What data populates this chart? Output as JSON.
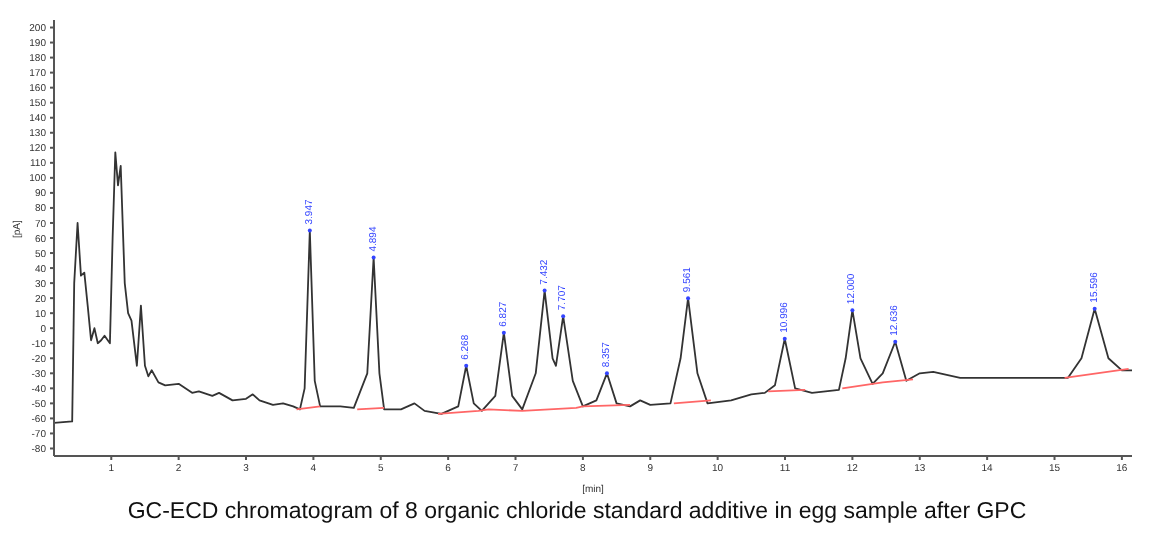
{
  "chart_data": {
    "type": "line",
    "title": "GC-ECD chromatogram of 8 organic chloride standard additive in egg sample after GPC",
    "xlabel": "[min]",
    "ylabel": "[pA]",
    "xlim": [
      0.15,
      16.15
    ],
    "ylim": [
      -85,
      205
    ],
    "xticks": [
      1,
      2,
      3,
      4,
      5,
      6,
      7,
      8,
      9,
      10,
      11,
      12,
      13,
      14,
      15,
      16
    ],
    "yticks": [
      -80,
      -70,
      -60,
      -50,
      -40,
      -30,
      -20,
      -10,
      0,
      10,
      20,
      30,
      40,
      50,
      60,
      70,
      80,
      90,
      100,
      110,
      120,
      130,
      140,
      150,
      160,
      170,
      180,
      190,
      200
    ],
    "series": [
      {
        "color": "#333333",
        "x": [
          0.15,
          0.42,
          0.45,
          0.5,
          0.55,
          0.6,
          0.65,
          0.7,
          0.75,
          0.8,
          0.85,
          0.9,
          0.98,
          1.02,
          1.06,
          1.1,
          1.14,
          1.2,
          1.25,
          1.3,
          1.38,
          1.44,
          1.5,
          1.55,
          1.6,
          1.7,
          1.8,
          2.0,
          2.1,
          2.2,
          2.3,
          2.5,
          2.6,
          2.8,
          3.0,
          3.1,
          3.2,
          3.4,
          3.55,
          3.7,
          3.8,
          3.87,
          3.947,
          4.02,
          4.1,
          4.4,
          4.6,
          4.8,
          4.894,
          4.98,
          5.05,
          5.3,
          5.5,
          5.65,
          5.9,
          6.15,
          6.268,
          6.38,
          6.5,
          6.7,
          6.827,
          6.95,
          7.1,
          7.3,
          7.432,
          7.55,
          7.6,
          7.707,
          7.85,
          8.0,
          8.2,
          8.357,
          8.5,
          8.7,
          8.85,
          9.0,
          9.3,
          9.45,
          9.561,
          9.7,
          9.85,
          10.2,
          10.5,
          10.7,
          10.85,
          10.996,
          11.15,
          11.4,
          11.8,
          11.9,
          12.0,
          12.12,
          12.3,
          12.45,
          12.636,
          12.8,
          13.0,
          13.2,
          13.6,
          14.0,
          14.5,
          15.2,
          15.4,
          15.596,
          15.8,
          16.0,
          16.15
        ],
        "values": [
          -63,
          -62,
          30,
          70,
          35,
          37,
          15,
          -8,
          0,
          -10,
          -8,
          -5,
          -10,
          60,
          117,
          95,
          108,
          30,
          10,
          5,
          -25,
          15,
          -25,
          -32,
          -28,
          -36,
          -38,
          -37,
          -40,
          -43,
          -42,
          -45,
          -43,
          -48,
          -47,
          -44,
          -48,
          -51,
          -50,
          -52,
          -54,
          -40,
          65,
          -35,
          -52,
          -52,
          -53,
          -30,
          47,
          -30,
          -54,
          -54,
          -50,
          -55,
          -57,
          -52,
          -25,
          -50,
          -55,
          -45,
          -3,
          -45,
          -54,
          -30,
          25,
          -20,
          -25,
          8,
          -35,
          -52,
          -48,
          -30,
          -50,
          -52,
          -48,
          -51,
          -50,
          -20,
          20,
          -30,
          -50,
          -48,
          -44,
          -43,
          -38,
          -7,
          -40,
          -43,
          -41,
          -20,
          12,
          -20,
          -37,
          -30,
          -9,
          -35,
          -30,
          -29,
          -33,
          -33,
          -33,
          -33,
          -20,
          13,
          -20,
          -28,
          -28
        ]
      },
      {
        "color": "#ff6666",
        "x": [
          3.75,
          4.1,
          4.15,
          4.65,
          5.05,
          5.1,
          5.85,
          6.45,
          6.6,
          7.1,
          7.9,
          8.0,
          8.7,
          8.75,
          9.35,
          9.9,
          9.95,
          10.75,
          11.3,
          11.35,
          11.85,
          12.45,
          12.9,
          12.95,
          15.15,
          16.1
        ],
        "values": [
          -54,
          -52,
          null,
          -54,
          -53,
          null,
          -57,
          -55,
          -54,
          -55,
          -53,
          -52,
          -51,
          null,
          -50,
          -48,
          null,
          -42,
          -41,
          null,
          -40,
          -36,
          -34,
          null,
          -33,
          -27
        ]
      }
    ],
    "annotations": [
      {
        "text": "3.947",
        "x": 3.947,
        "y": 65
      },
      {
        "text": "4.894",
        "x": 4.894,
        "y": 47
      },
      {
        "text": "6.268",
        "x": 6.268,
        "y": -25
      },
      {
        "text": "6.827",
        "x": 6.827,
        "y": -3
      },
      {
        "text": "7.432",
        "x": 7.432,
        "y": 25
      },
      {
        "text": "7.707",
        "x": 7.707,
        "y": 8
      },
      {
        "text": "8.357",
        "x": 8.357,
        "y": -30
      },
      {
        "text": "9.561",
        "x": 9.561,
        "y": 20
      },
      {
        "text": "10.996",
        "x": 10.996,
        "y": -7
      },
      {
        "text": "12.000",
        "x": 12.0,
        "y": 12
      },
      {
        "text": "12.636",
        "x": 12.636,
        "y": -9
      },
      {
        "text": "15.596",
        "x": 15.596,
        "y": 13
      }
    ]
  }
}
